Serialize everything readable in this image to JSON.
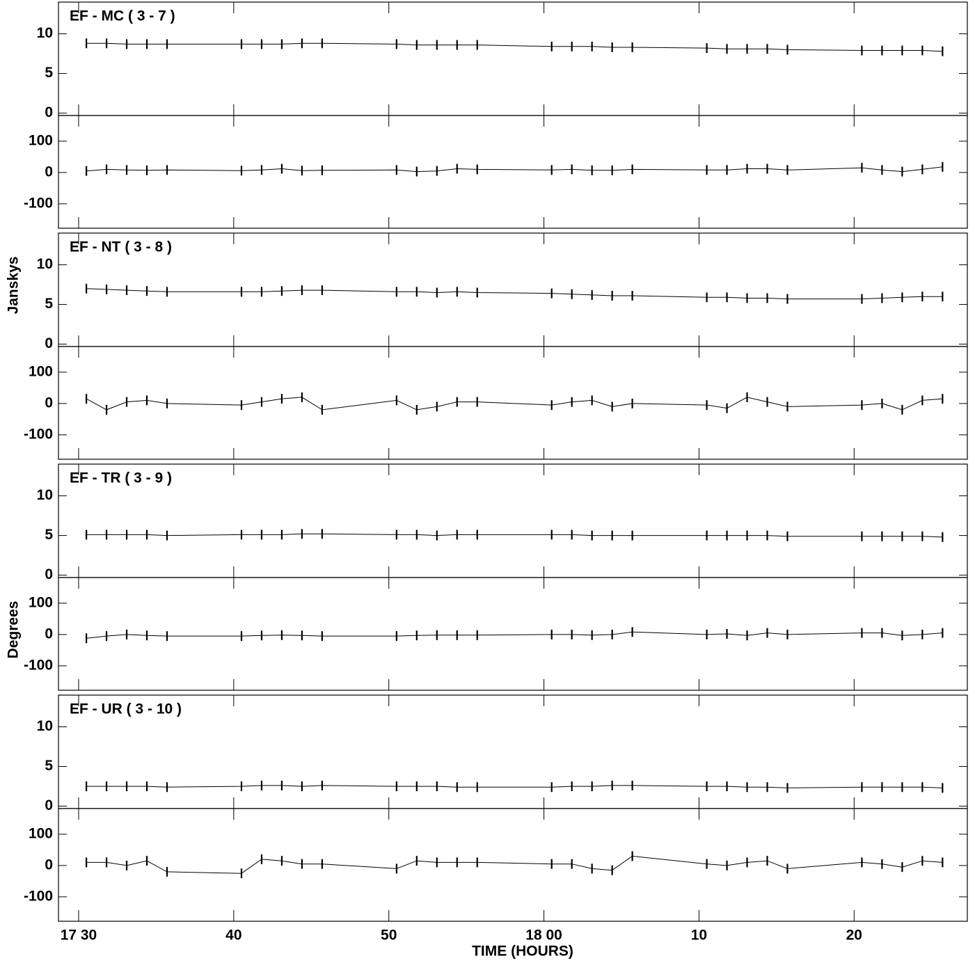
{
  "shared": {
    "xlabel": "TIME (HOURS)",
    "ylabel": "Janskys",
    "y2label": "Degrees",
    "xlim": [
      28.7,
      87.3
    ],
    "xticks": [
      {
        "value": 30,
        "label": "17 30"
      },
      40,
      50,
      {
        "value": 60,
        "label": "18 00"
      },
      {
        "value": 70,
        "label": "10"
      },
      {
        "value": 80,
        "label": "20"
      }
    ]
  },
  "chart_data": [
    {
      "type": "line",
      "title": "EF - MC ( 3 - 7 )",
      "x": [
        30.5,
        31.8,
        33.1,
        34.4,
        35.7,
        40.5,
        41.8,
        43.1,
        44.4,
        45.7,
        50.5,
        51.8,
        53.1,
        54.4,
        55.7,
        60.5,
        61.8,
        63.1,
        64.4,
        65.7,
        70.5,
        71.8,
        73.1,
        74.4,
        75.7,
        80.5,
        81.8,
        83.1,
        84.4,
        85.7
      ],
      "ylim": [
        -0.3,
        14
      ],
      "yticks": [
        0,
        5,
        10
      ],
      "y2lim": [
        -178,
        182
      ],
      "y2ticks": [
        -100,
        0,
        100
      ],
      "series": [
        {
          "color": "#000000",
          "values": [
            8.8,
            8.8,
            8.7,
            8.7,
            8.7,
            8.7,
            8.7,
            8.7,
            8.8,
            8.8,
            8.7,
            8.6,
            8.6,
            8.6,
            8.6,
            8.4,
            8.4,
            8.4,
            8.3,
            8.3,
            8.2,
            8.1,
            8.1,
            8.1,
            8.0,
            7.9,
            7.9,
            7.9,
            7.9,
            7.8
          ]
        },
        {
          "color": "#000000",
          "axis": "y2",
          "values": [
            5,
            10,
            8,
            7,
            8,
            6,
            8,
            12,
            6,
            7,
            8,
            3,
            5,
            12,
            10,
            8,
            10,
            7,
            7,
            10,
            8,
            8,
            12,
            12,
            8,
            15,
            8,
            3,
            10,
            18
          ]
        }
      ]
    },
    {
      "type": "line",
      "title": "EF - NT ( 3 - 8 )",
      "x": [
        30.5,
        31.8,
        33.1,
        34.4,
        35.7,
        40.5,
        41.8,
        43.1,
        44.4,
        45.7,
        50.5,
        51.8,
        53.1,
        54.4,
        55.7,
        60.5,
        61.8,
        63.1,
        64.4,
        65.7,
        70.5,
        71.8,
        73.1,
        74.4,
        75.7,
        80.5,
        81.8,
        83.1,
        84.4,
        85.7
      ],
      "ylim": [
        -0.3,
        14
      ],
      "yticks": [
        0,
        5,
        10
      ],
      "y2lim": [
        -178,
        182
      ],
      "y2ticks": [
        -100,
        0,
        100
      ],
      "series": [
        {
          "color": "#000000",
          "values": [
            7.0,
            6.9,
            6.8,
            6.7,
            6.6,
            6.6,
            6.6,
            6.7,
            6.8,
            6.8,
            6.6,
            6.6,
            6.5,
            6.6,
            6.5,
            6.4,
            6.3,
            6.2,
            6.1,
            6.1,
            5.9,
            5.9,
            5.8,
            5.8,
            5.7,
            5.7,
            5.8,
            5.9,
            6.0,
            6.0
          ]
        },
        {
          "color": "#000000",
          "axis": "y2",
          "values": [
            15,
            -20,
            5,
            10,
            0,
            -5,
            5,
            15,
            20,
            -20,
            10,
            -20,
            -10,
            5,
            5,
            -5,
            5,
            10,
            -10,
            0,
            -5,
            -15,
            20,
            5,
            -10,
            -5,
            0,
            -20,
            10,
            15
          ]
        }
      ]
    },
    {
      "type": "line",
      "title": "EF - TR ( 3 - 9 )",
      "x": [
        30.5,
        31.8,
        33.1,
        34.4,
        35.7,
        40.5,
        41.8,
        43.1,
        44.4,
        45.7,
        50.5,
        51.8,
        53.1,
        54.4,
        55.7,
        60.5,
        61.8,
        63.1,
        64.4,
        65.7,
        70.5,
        71.8,
        73.1,
        74.4,
        75.7,
        80.5,
        81.8,
        83.1,
        84.4,
        85.7
      ],
      "ylim": [
        -0.3,
        14
      ],
      "yticks": [
        0,
        5,
        10
      ],
      "y2lim": [
        -178,
        182
      ],
      "y2ticks": [
        -100,
        0,
        100
      ],
      "series": [
        {
          "color": "#000000",
          "values": [
            5.1,
            5.1,
            5.1,
            5.1,
            5.0,
            5.1,
            5.1,
            5.1,
            5.2,
            5.2,
            5.1,
            5.1,
            5.0,
            5.1,
            5.1,
            5.1,
            5.1,
            5.0,
            5.0,
            5.0,
            5.0,
            5.0,
            5.0,
            5.0,
            4.9,
            4.9,
            4.9,
            4.9,
            4.9,
            4.8
          ]
        },
        {
          "color": "#000000",
          "axis": "y2",
          "values": [
            -12,
            -5,
            0,
            -3,
            -5,
            -5,
            -3,
            -2,
            -3,
            -5,
            -5,
            -3,
            -2,
            -2,
            -2,
            0,
            0,
            -2,
            0,
            8,
            0,
            2,
            -3,
            5,
            0,
            5,
            5,
            -3,
            0,
            5
          ]
        }
      ]
    },
    {
      "type": "line",
      "title": "EF - UR ( 3 - 10 )",
      "x": [
        30.5,
        31.8,
        33.1,
        34.4,
        35.7,
        40.5,
        41.8,
        43.1,
        44.4,
        45.7,
        50.5,
        51.8,
        53.1,
        54.4,
        55.7,
        60.5,
        61.8,
        63.1,
        64.4,
        65.7,
        70.5,
        71.8,
        73.1,
        74.4,
        75.7,
        80.5,
        81.8,
        83.1,
        84.4,
        85.7
      ],
      "ylim": [
        -0.3,
        14
      ],
      "yticks": [
        0,
        5,
        10
      ],
      "y2lim": [
        -178,
        182
      ],
      "y2ticks": [
        -100,
        0,
        100
      ],
      "series": [
        {
          "color": "#000000",
          "values": [
            2.5,
            2.5,
            2.5,
            2.5,
            2.4,
            2.5,
            2.6,
            2.6,
            2.5,
            2.6,
            2.5,
            2.5,
            2.5,
            2.4,
            2.4,
            2.4,
            2.5,
            2.5,
            2.6,
            2.6,
            2.5,
            2.5,
            2.4,
            2.4,
            2.3,
            2.4,
            2.4,
            2.4,
            2.4,
            2.3
          ]
        },
        {
          "color": "#000000",
          "axis": "y2",
          "values": [
            10,
            10,
            0,
            15,
            -20,
            -25,
            20,
            15,
            5,
            5,
            -10,
            15,
            10,
            10,
            10,
            5,
            5,
            -10,
            -15,
            30,
            5,
            0,
            10,
            15,
            -10,
            10,
            5,
            -5,
            15,
            10
          ]
        }
      ]
    }
  ]
}
